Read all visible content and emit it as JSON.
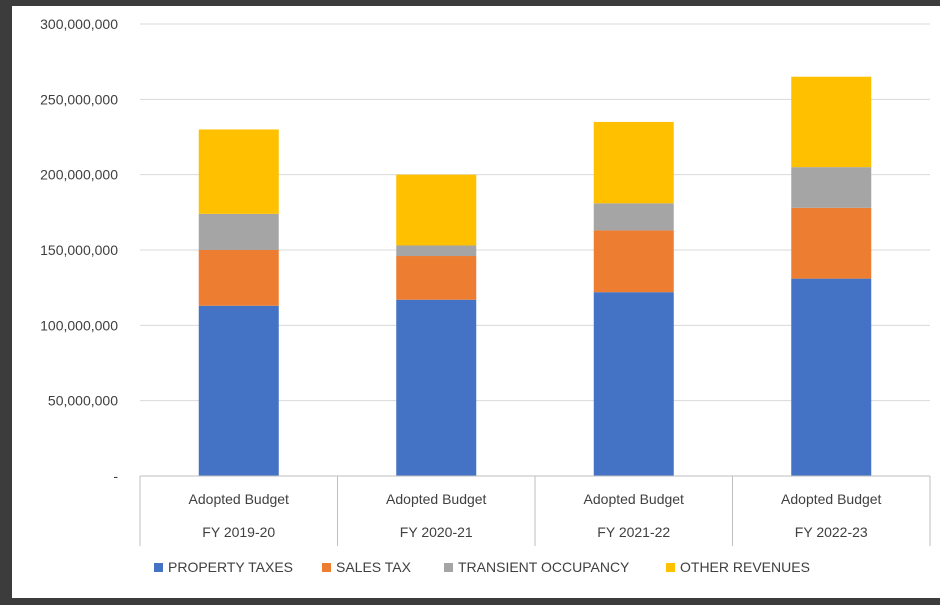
{
  "chart_data": {
    "type": "bar",
    "stacked": true,
    "categories": [
      [
        "Adopted Budget",
        "FY 2019-20"
      ],
      [
        "Adopted Budget",
        "FY 2020-21"
      ],
      [
        "Adopted Budget",
        "FY 2021-22"
      ],
      [
        "Adopted Budget",
        "FY 2022-23"
      ]
    ],
    "series": [
      {
        "name": "PROPERTY TAXES",
        "color": "#4472C4",
        "values": [
          113000000,
          117000000,
          122000000,
          131000000
        ]
      },
      {
        "name": "SALES TAX",
        "color": "#ED7D31",
        "values": [
          37000000,
          29000000,
          41000000,
          47000000
        ]
      },
      {
        "name": "TRANSIENT OCCUPANCY",
        "color": "#A5A5A5",
        "values": [
          24000000,
          7000000,
          18000000,
          27000000
        ]
      },
      {
        "name": "OTHER REVENUES",
        "color": "#FFC000",
        "values": [
          56000000,
          47000000,
          54000000,
          60000000
        ]
      }
    ],
    "ylim": [
      0,
      300000000
    ],
    "yticks": [
      0,
      50000000,
      100000000,
      150000000,
      200000000,
      250000000,
      300000000
    ],
    "ytick_labels": [
      "-",
      "50,000,000",
      "100,000,000",
      "150,000,000",
      "200,000,000",
      "250,000,000",
      "300,000,000"
    ],
    "grid": true,
    "legend_position": "bottom"
  }
}
